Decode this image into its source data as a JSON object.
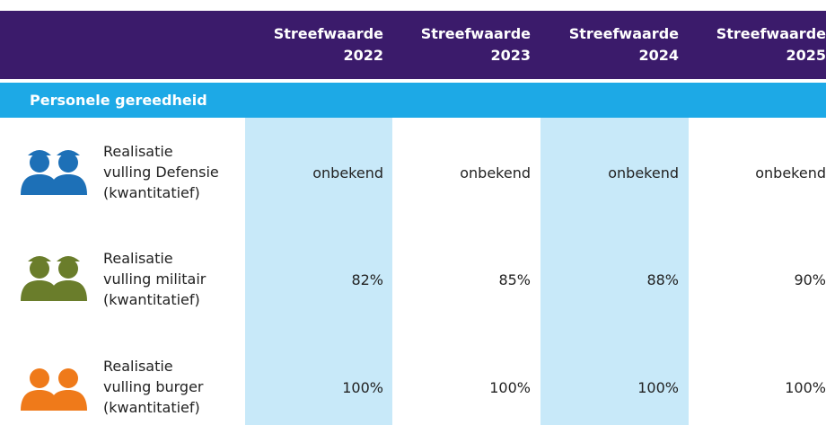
{
  "table": {
    "columns": [
      {
        "label": "Streefwaarde",
        "year": "2022"
      },
      {
        "label": "Streefwaarde",
        "year": "2023"
      },
      {
        "label": "Streefwaarde",
        "year": "2024"
      },
      {
        "label": "Streefwaarde",
        "year": "2025"
      }
    ],
    "section": "Personele gereedheid",
    "rows": [
      {
        "label": [
          "Realisatie",
          "vulling Defensie",
          "(kwantitatief)"
        ],
        "values": [
          "onbekend",
          "onbekend",
          "onbekend",
          "onbekend"
        ]
      },
      {
        "label": [
          "Realisatie",
          "vulling militair",
          "(kwantitatief)"
        ],
        "values": [
          "82%",
          "85%",
          "88%",
          "90%"
        ]
      },
      {
        "label": [
          "Realisatie",
          "vulling burger",
          "(kwantitatief)"
        ],
        "values": [
          "100%",
          "100%",
          "100%",
          "100%"
        ]
      }
    ]
  }
}
